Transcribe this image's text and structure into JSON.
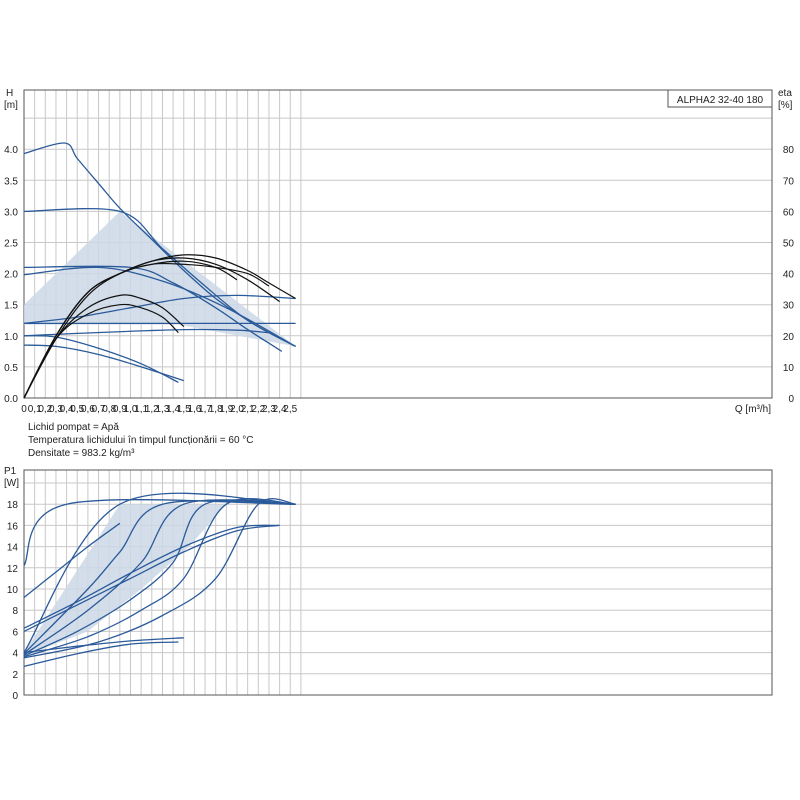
{
  "chart_data": [
    {
      "type": "line",
      "model_label": "ALPHA2 32-40 180",
      "xlabel": "Q [m³/h]",
      "ylabel_left": [
        "H",
        "[m]"
      ],
      "ylabel_right": [
        "eta",
        "[%]"
      ],
      "xlim": [
        0,
        2.6
      ],
      "ylim": [
        0,
        4.5
      ],
      "y2lim": [
        0,
        90
      ],
      "xticks": [
        "0",
        "0,1",
        "0,2",
        "0,3",
        "0,4",
        "0,5",
        "0,6",
        "0,7",
        "0,8",
        "0,9",
        "1,0",
        "1,1",
        "1,2",
        "1,3",
        "1,4",
        "1,5",
        "1,6",
        "1,7",
        "1,8",
        "1,9",
        "2,0",
        "2,1",
        "2,2",
        "2,3",
        "2,4",
        "2,5"
      ],
      "yticks": [
        "0.0",
        "0.5",
        "1.0",
        "1.5",
        "2.0",
        "2.5",
        "3.0",
        "3.5",
        "4.0"
      ],
      "y2ticks": [
        "0",
        "10",
        "20",
        "30",
        "40",
        "50",
        "60",
        "70",
        "80"
      ],
      "grid": true,
      "colors": {
        "head": "#2a5a9a",
        "efficiency": "#111111",
        "area": "#cbd8e6",
        "grid": "#c8c8c8"
      },
      "operating_area": [
        [
          0,
          1.5
        ],
        [
          0.9,
          3.0
        ],
        [
          2.55,
          0.83
        ],
        [
          1.45,
          1.18
        ],
        [
          0,
          1.18
        ]
      ],
      "head_curves": [
        {
          "name": "max",
          "x": [
            0,
            0.38,
            0.5,
            0.7,
            0.9,
            1.2,
            1.5,
            1.8,
            2.1,
            2.3,
            2.55
          ],
          "y": [
            3.93,
            4.1,
            3.85,
            3.45,
            3.05,
            2.55,
            2.05,
            1.6,
            1.25,
            1.05,
            0.83
          ]
        },
        {
          "x": [
            0,
            0.9,
            1.3,
            1.7,
            2.1,
            2.55
          ],
          "y": [
            3.0,
            3.0,
            2.4,
            1.8,
            1.25,
            0.83
          ]
        },
        {
          "x": [
            0,
            1.0,
            1.4,
            1.8,
            2.1,
            2.42
          ],
          "y": [
            2.1,
            2.1,
            1.85,
            1.45,
            1.1,
            0.75
          ]
        },
        {
          "x": [
            0,
            0.7,
            1.3,
            1.9,
            2.55
          ],
          "y": [
            1.98,
            2.1,
            1.88,
            1.45,
            0.83
          ]
        },
        {
          "x": [
            0,
            0.5,
            1.0,
            1.5,
            2.0,
            2.55
          ],
          "y": [
            1.2,
            1.3,
            1.45,
            1.6,
            1.65,
            1.6
          ]
        },
        {
          "x": [
            0,
            2.55
          ],
          "y": [
            1.2,
            1.2
          ]
        },
        {
          "x": [
            0,
            0.8,
            1.5,
            2.0,
            2.3
          ],
          "y": [
            1.0,
            1.06,
            1.1,
            1.09,
            1.05
          ]
        },
        {
          "x": [
            0,
            0.3,
            0.7,
            1.1,
            1.5
          ],
          "y": [
            0.85,
            0.83,
            0.7,
            0.5,
            0.28
          ]
        },
        {
          "x": [
            0,
            0.3,
            0.7,
            1.1,
            1.45
          ],
          "y": [
            1.0,
            0.98,
            0.8,
            0.55,
            0.25
          ]
        }
      ],
      "efficiency_curves": [
        {
          "x": [
            0,
            0.3,
            0.6,
            0.9,
            1.2,
            1.5,
            1.8,
            2.1,
            2.3,
            2.55
          ],
          "y": [
            0,
            20,
            34,
            40,
            44,
            46,
            45,
            41,
            37,
            32
          ]
        },
        {
          "x": [
            0,
            0.3,
            0.6,
            0.9,
            1.2,
            1.5,
            1.8,
            2.1,
            2.4
          ],
          "y": [
            0,
            20,
            34,
            40,
            44,
            45,
            43,
            38,
            31
          ]
        },
        {
          "x": [
            0,
            0.3,
            0.6,
            0.9,
            1.2,
            1.5,
            1.8,
            2.0
          ],
          "y": [
            0,
            19,
            33,
            40,
            43,
            44,
            42,
            38
          ]
        },
        {
          "x": [
            0,
            0.3,
            0.6,
            0.9,
            1.2,
            1.5,
            1.8,
            2.1,
            2.3
          ],
          "y": [
            0,
            20,
            34,
            40,
            43,
            43,
            42,
            40,
            36
          ]
        },
        {
          "x": [
            0,
            0.3,
            0.6,
            0.9,
            1.1,
            1.3,
            1.5
          ],
          "y": [
            0,
            19,
            29,
            33,
            32,
            29,
            23
          ]
        },
        {
          "x": [
            0,
            0.3,
            0.6,
            0.9,
            1.1,
            1.3,
            1.45
          ],
          "y": [
            0,
            19,
            27,
            30,
            29,
            26,
            21
          ]
        }
      ],
      "notes": [
        "Lichid pompat = Apă",
        "Temperatura lichidului în timpul funcționării = 60 °C",
        "Densitate = 983.2 kg/m³"
      ]
    },
    {
      "type": "line",
      "ylabel": [
        "P1",
        "[W]"
      ],
      "xlim": [
        0,
        2.6
      ],
      "ylim": [
        0,
        20
      ],
      "yticks": [
        "0",
        "2",
        "4",
        "6",
        "8",
        "10",
        "12",
        "14",
        "16",
        "18"
      ],
      "grid": true,
      "colors": {
        "power": "#2a5a9a",
        "area": "#cbd8e6",
        "grid": "#c8c8c8"
      },
      "operating_area": [
        [
          0,
          4
        ],
        [
          0.9,
          18
        ],
        [
          1.9,
          18
        ],
        [
          1.55,
          14
        ],
        [
          1.1,
          10
        ],
        [
          0.6,
          6
        ],
        [
          0,
          3.7
        ]
      ],
      "power_curves": [
        {
          "name": "max",
          "x": [
            0,
            0.4,
            2.55
          ],
          "y": [
            12.2,
            18,
            18
          ]
        },
        {
          "x": [
            0,
            0.9,
            2.55
          ],
          "y": [
            4,
            18,
            18
          ]
        },
        {
          "x": [
            0,
            0.6,
            0.9,
            1.3,
            2.55
          ],
          "y": [
            3.9,
            10,
            13.5,
            18,
            18
          ]
        },
        {
          "x": [
            0,
            0.6,
            1.1,
            1.5,
            2.55
          ],
          "y": [
            3.8,
            8,
            12.5,
            18,
            18
          ]
        },
        {
          "x": [
            0,
            0.5,
            1.0,
            1.4,
            1.7,
            2.55
          ],
          "y": [
            3.7,
            6,
            9,
            12.5,
            18,
            18
          ]
        },
        {
          "x": [
            0,
            0.6,
            1.1,
            1.5,
            1.9,
            2.55
          ],
          "y": [
            3.6,
            5.5,
            8,
            11,
            18,
            18
          ]
        },
        {
          "x": [
            0,
            0.7,
            1.3,
            1.8,
            2.2,
            2.55
          ],
          "y": [
            3.5,
            5,
            7.5,
            11,
            18,
            18
          ]
        },
        {
          "x": [
            0,
            0.5,
            1.0,
            1.5,
            2.0,
            2.4
          ],
          "y": [
            6,
            8.5,
            11,
            13.5,
            15.5,
            16
          ]
        },
        {
          "x": [
            0,
            0.5,
            1.0,
            1.5,
            2.0,
            2.4
          ],
          "y": [
            6.3,
            8.8,
            11.5,
            14,
            15.8,
            16
          ]
        },
        {
          "x": [
            0,
            0.3,
            0.6,
            0.9
          ],
          "y": [
            9.2,
            11.6,
            14,
            16.2
          ]
        },
        {
          "x": [
            0,
            0.5,
            1.0,
            1.5
          ],
          "y": [
            4.0,
            4.6,
            5.1,
            5.4
          ]
        },
        {
          "x": [
            0,
            0.5,
            1.0,
            1.45
          ],
          "y": [
            2.7,
            3.9,
            4.8,
            5.0
          ]
        }
      ]
    }
  ]
}
